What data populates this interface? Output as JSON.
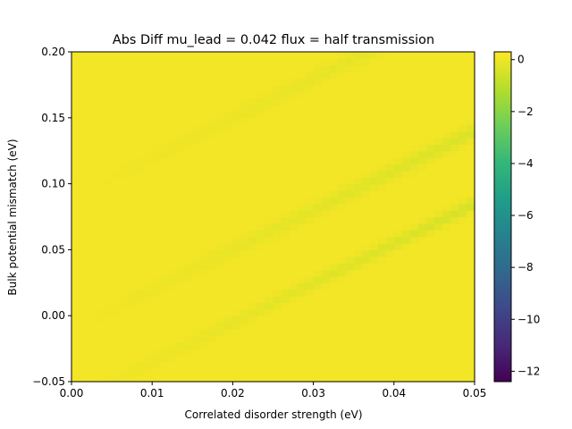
{
  "chart_data": {
    "type": "heatmap",
    "title": "Abs Diff mu_lead = 0.042 flux = half transmission",
    "xlabel": "Correlated disorder strength (eV)",
    "ylabel": "Bulk potential mismatch (eV)",
    "xlim": [
      0.0,
      0.05
    ],
    "ylim": [
      -0.05,
      0.2
    ],
    "x_ticks": [
      {
        "value": 0.0,
        "label": "0.00"
      },
      {
        "value": 0.01,
        "label": "0.01"
      },
      {
        "value": 0.02,
        "label": "0.02"
      },
      {
        "value": 0.03,
        "label": "0.03"
      },
      {
        "value": 0.04,
        "label": "0.04"
      },
      {
        "value": 0.05,
        "label": "0.05"
      }
    ],
    "y_ticks": [
      {
        "value": -0.05,
        "label": "−0.05"
      },
      {
        "value": 0.0,
        "label": "0.00"
      },
      {
        "value": 0.05,
        "label": "0.05"
      },
      {
        "value": 0.1,
        "label": "0.10"
      },
      {
        "value": 0.15,
        "label": "0.15"
      },
      {
        "value": 0.2,
        "label": "0.20"
      }
    ],
    "colorbar": {
      "colormap": "viridis",
      "range": [
        -12.4,
        0.3
      ],
      "ticks": [
        {
          "value": 0,
          "label": "0"
        },
        {
          "value": -2,
          "label": "−2"
        },
        {
          "value": -4,
          "label": "−4"
        },
        {
          "value": -6,
          "label": "−6"
        },
        {
          "value": -8,
          "label": "−8"
        },
        {
          "value": -10,
          "label": "−10"
        },
        {
          "value": -12,
          "label": "−12"
        }
      ]
    },
    "grid": {
      "nx": 50,
      "ny": 50,
      "base_value": 0.1,
      "bands": [
        {
          "intercept": 0.19,
          "slope": 3.0,
          "width": 0.006,
          "depth": 0.45
        },
        {
          "intercept": 0.09,
          "slope": 3.0,
          "width": 0.006,
          "depth": 0.35
        },
        {
          "intercept": -0.01,
          "slope": 3.0,
          "width": 0.006,
          "depth": 0.5
        },
        {
          "intercept": -0.065,
          "slope": 3.0,
          "width": 0.005,
          "depth": 0.6
        }
      ]
    },
    "colors": {
      "viridis": [
        "#440154",
        "#482878",
        "#3e4989",
        "#31688e",
        "#26828e",
        "#1f9e89",
        "#35b779",
        "#6ece58",
        "#b5de2b",
        "#fde725"
      ]
    }
  }
}
